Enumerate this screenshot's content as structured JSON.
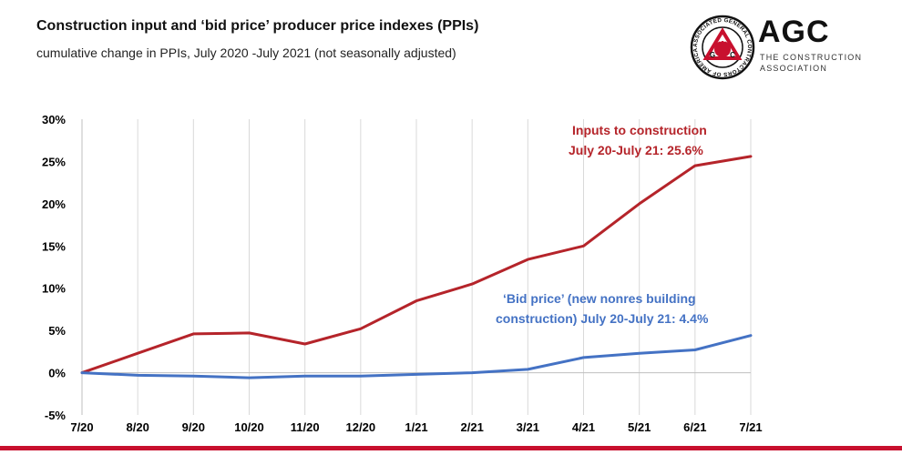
{
  "header": {
    "title": "Construction input and ‘bid price’ producer price indexes (PPIs)",
    "subtitle": "cumulative change in PPIs, July 2020 -July 2021 (not seasonally adjusted)"
  },
  "logo": {
    "name": "AGC",
    "line1": "THE CONSTRUCTION",
    "line2": "ASSOCIATION",
    "seal_text": "ASSOCIATED GENERAL CONTRACTORS OF AMERICA",
    "seal_letters": [
      "A",
      "G",
      "C"
    ],
    "brand_color": "#c8102e"
  },
  "colors": {
    "inputs": "#b5242a",
    "bid": "#4472c4",
    "grid": "#d9d9d9",
    "accent_bar": "#c8102e"
  },
  "chart_data": {
    "type": "line",
    "title": "Construction input and ‘bid price’ producer price indexes (PPIs)",
    "categories": [
      "7/20",
      "8/20",
      "9/20",
      "10/20",
      "11/20",
      "12/20",
      "1/21",
      "2/21",
      "3/21",
      "4/21",
      "5/21",
      "6/21",
      "7/21"
    ],
    "ylim": [
      -5,
      30
    ],
    "yticks": [
      -5,
      0,
      5,
      10,
      15,
      20,
      25,
      30
    ],
    "ytick_labels": [
      "-5%",
      "0%",
      "5%",
      "10%",
      "15%",
      "20%",
      "25%",
      "30%"
    ],
    "grid": "vertical",
    "series": [
      {
        "name": "Inputs to construction",
        "color": "#b5242a",
        "values": [
          0,
          2.3,
          4.6,
          4.7,
          3.4,
          5.2,
          8.5,
          10.5,
          13.4,
          15.0,
          20.0,
          24.5,
          25.6
        ]
      },
      {
        "name": "‘Bid price’ (new nonres building construction)",
        "color": "#4472c4",
        "values": [
          0,
          -0.3,
          -0.4,
          -0.6,
          -0.4,
          -0.4,
          -0.2,
          0.0,
          0.4,
          1.8,
          2.3,
          2.7,
          4.4
        ]
      }
    ],
    "annotations": {
      "inputs_line1": "Inputs to construction",
      "inputs_line2": "July 20-July 21: 25.6%",
      "bid_line1": "‘Bid price’ (new nonres building",
      "bid_line2": "construction) July 20-July 21: 4.4%"
    }
  }
}
